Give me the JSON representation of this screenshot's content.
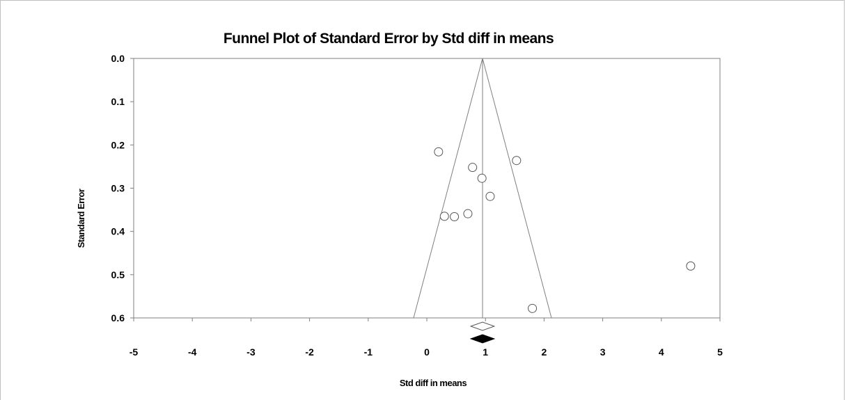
{
  "chart_data": {
    "type": "scatter",
    "title": "Funnel Plot of Standard Error by Std diff in means",
    "xlabel": "Std diff in means",
    "ylabel": "Standard Error",
    "xlim": [
      -5,
      5
    ],
    "ylim": [
      0.0,
      0.6
    ],
    "y_reversed": true,
    "x_ticks": [
      "-5",
      "-4",
      "-3",
      "-2",
      "-1",
      "0",
      "1",
      "2",
      "3",
      "4",
      "5"
    ],
    "y_ticks": [
      "0.0",
      "0.1",
      "0.2",
      "0.3",
      "0.4",
      "0.5",
      "0.6"
    ],
    "grid": false,
    "legend": "none",
    "pooled_estimate": 0.95,
    "observed_studies": [
      {
        "x": 0.2,
        "y": 0.216
      },
      {
        "x": 1.53,
        "y": 0.236
      },
      {
        "x": 0.78,
        "y": 0.252
      },
      {
        "x": 0.94,
        "y": 0.277
      },
      {
        "x": 1.08,
        "y": 0.319
      },
      {
        "x": 0.7,
        "y": 0.359
      },
      {
        "x": 0.3,
        "y": 0.365
      },
      {
        "x": 0.47,
        "y": 0.366
      },
      {
        "x": 4.5,
        "y": 0.48
      },
      {
        "x": 1.8,
        "y": 0.578
      }
    ],
    "observed_summary": {
      "estimate": 0.95,
      "lower": 0.75,
      "upper": 1.15
    },
    "adjusted_summary": {
      "estimate": 0.95,
      "lower": 0.75,
      "upper": 1.15
    },
    "colors": {
      "marker_stroke": "#555555",
      "line": "#7f7f7f",
      "adjusted_fill": "#000000",
      "observed_fill": "#ffffff"
    }
  }
}
